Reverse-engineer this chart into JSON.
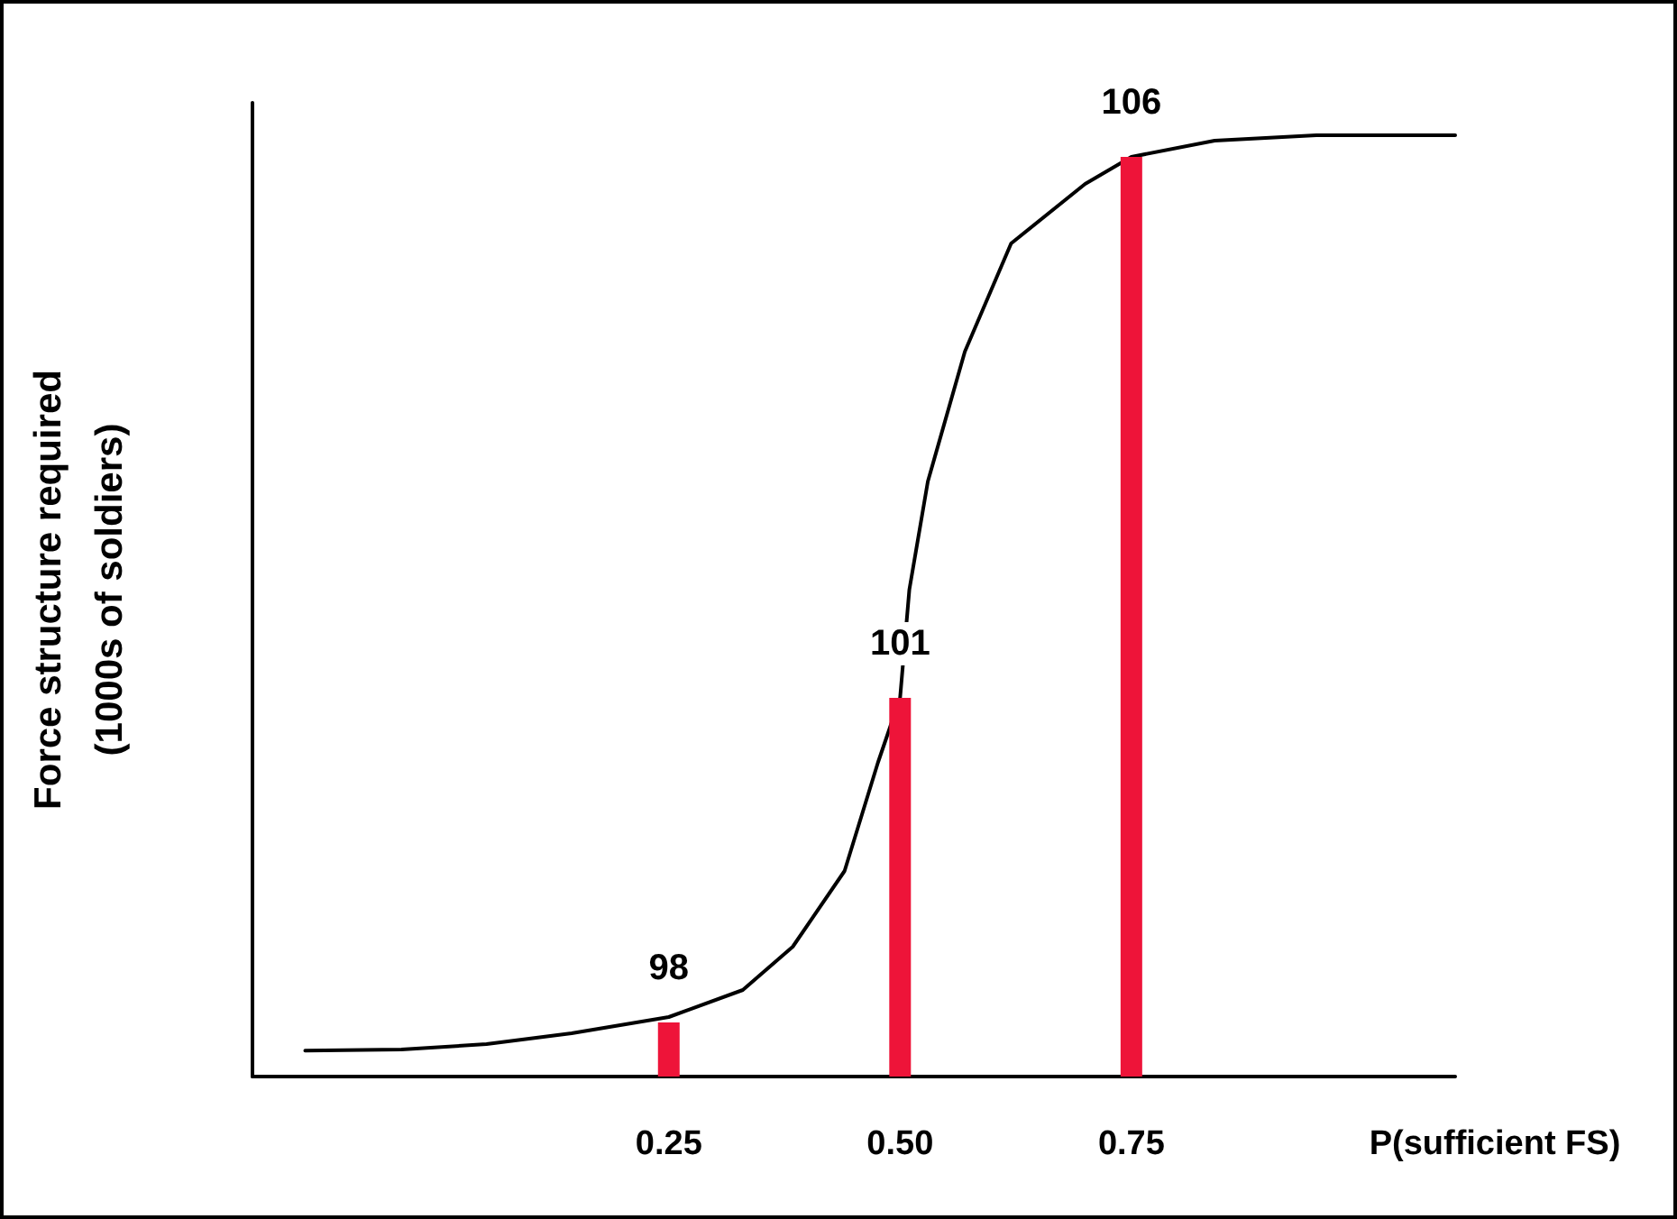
{
  "chart_data": {
    "type": "bar",
    "xlabel": "P(sufficient FS)",
    "ylabel": "Force structure required\n(1000s of soldiers)",
    "series": [
      {
        "x": [
          0.25,
          0.5,
          0.75
        ],
        "values": [
          98,
          101,
          106
        ],
        "value_labels": [
          "98",
          "101",
          "106"
        ],
        "color": "#ee1439"
      },
      {
        "type": "line",
        "x": [
          -0.143,
          -0.039,
          0.053,
          0.145,
          0.25,
          0.33,
          0.384,
          0.44,
          0.476,
          0.5,
          0.51,
          0.53,
          0.57,
          0.62,
          0.7,
          0.75,
          0.84,
          0.95,
          1.1
        ],
        "values": [
          97.74,
          97.75,
          97.8,
          97.9,
          98.05,
          98.3,
          98.7,
          99.4,
          100.4,
          101,
          102,
          103,
          104.2,
          105.2,
          105.75,
          106,
          106.15,
          106.2,
          106.2
        ],
        "color": "#000000"
      }
    ],
    "xlim": [
      -0.2,
      1.1
    ],
    "xticks": [
      0.25,
      {
        "value": 0.5,
        "label": "0.50"
      },
      0.75
    ],
    "ylim": [
      97.5,
      106.5
    ],
    "tick_labels": "x",
    "grid": false,
    "marker": "none",
    "line_style": "solid"
  }
}
